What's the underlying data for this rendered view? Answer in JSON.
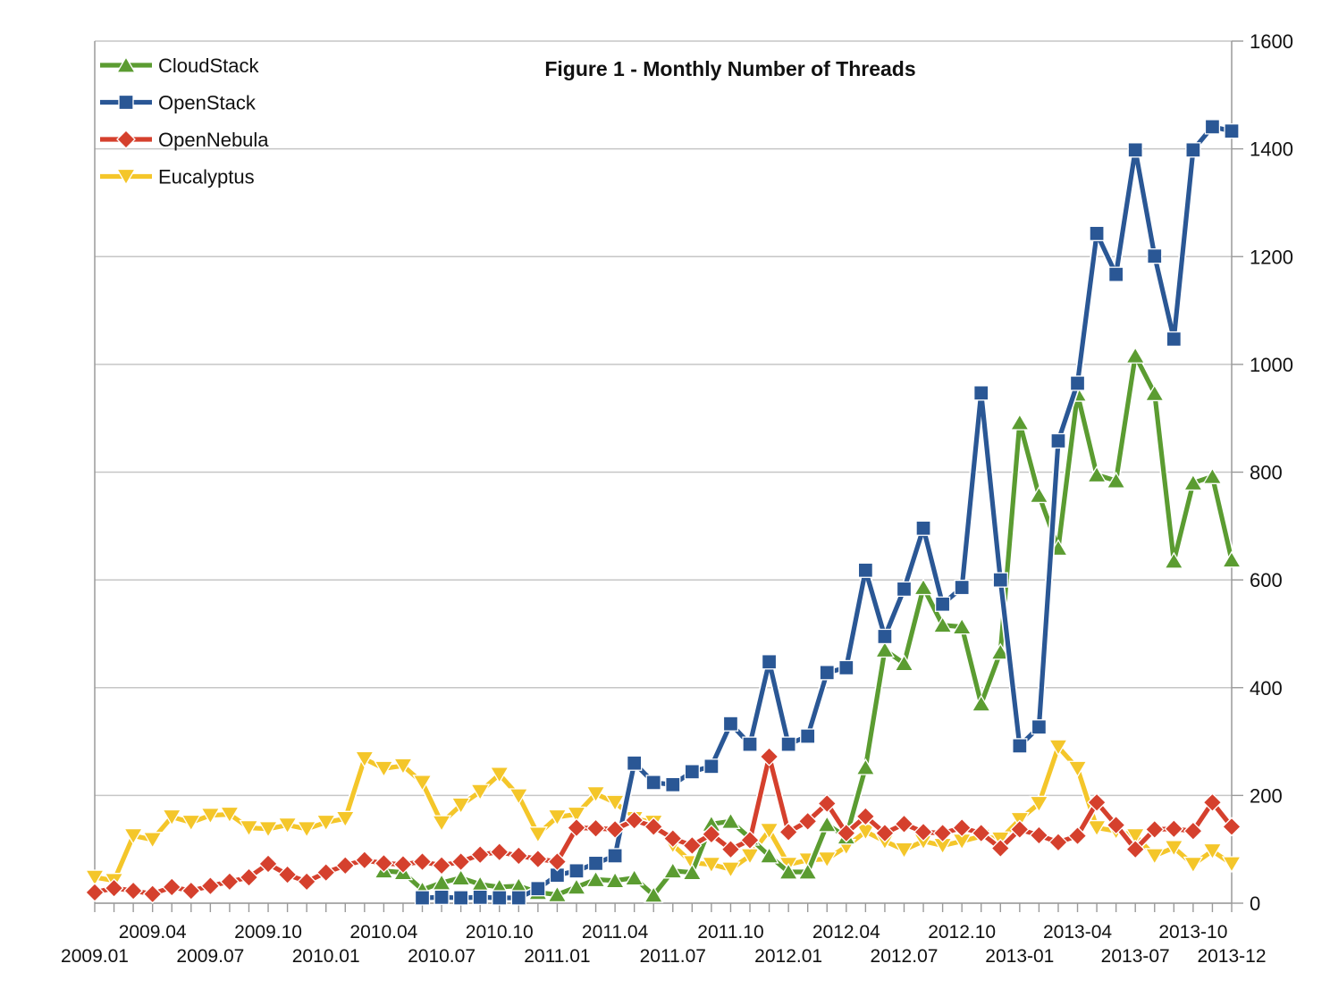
{
  "title": "Figure 1 - Monthly Number of Threads",
  "chart_data": {
    "type": "line",
    "title": "Figure 1 - Monthly Number of Threads",
    "xlabel": "",
    "ylabel": "",
    "ylim": [
      0,
      1600
    ],
    "yticks": [
      0,
      200,
      400,
      600,
      800,
      1000,
      1200,
      1400,
      1600
    ],
    "ytick_side": "right",
    "grid": "horizontal",
    "legend_position": "top-left",
    "x": [
      "2009.01",
      "2009.02",
      "2009.03",
      "2009.04",
      "2009.05",
      "2009.06",
      "2009.07",
      "2009.08",
      "2009.09",
      "2009.10",
      "2009.11",
      "2009.12",
      "2010.01",
      "2010.02",
      "2010.03",
      "2010.04",
      "2010.05",
      "2010.06",
      "2010.07",
      "2010.08",
      "2010.09",
      "2010.10",
      "2010.11",
      "2010.12",
      "2011.01",
      "2011.02",
      "2011.03",
      "2011.04",
      "2011.05",
      "2011.06",
      "2011.07",
      "2011.08",
      "2011.09",
      "2011.10",
      "2011.11",
      "2011.12",
      "2012.01",
      "2012.02",
      "2012.03",
      "2012.04",
      "2012.05",
      "2012.06",
      "2012.07",
      "2012.08",
      "2012.09",
      "2012.10",
      "2012.11",
      "2012.12",
      "2013-01",
      "2013-02",
      "2013-03",
      "2013-04",
      "2013-05",
      "2013-06",
      "2013-07",
      "2013-08",
      "2013-09",
      "2013-10",
      "2013-11",
      "2013-12"
    ],
    "x_ticks": [
      {
        "index": 0,
        "label": "2009.01",
        "row": "lower"
      },
      {
        "index": 3,
        "label": "2009.04",
        "row": "upper"
      },
      {
        "index": 6,
        "label": "2009.07",
        "row": "lower"
      },
      {
        "index": 9,
        "label": "2009.10",
        "row": "upper"
      },
      {
        "index": 12,
        "label": "2010.01",
        "row": "lower"
      },
      {
        "index": 15,
        "label": "2010.04",
        "row": "upper"
      },
      {
        "index": 18,
        "label": "2010.07",
        "row": "lower"
      },
      {
        "index": 21,
        "label": "2010.10",
        "row": "upper"
      },
      {
        "index": 24,
        "label": "2011.01",
        "row": "lower"
      },
      {
        "index": 27,
        "label": "2011.04",
        "row": "upper"
      },
      {
        "index": 30,
        "label": "2011.07",
        "row": "lower"
      },
      {
        "index": 33,
        "label": "2011.10",
        "row": "upper"
      },
      {
        "index": 36,
        "label": "2012.01",
        "row": "lower"
      },
      {
        "index": 39,
        "label": "2012.04",
        "row": "upper"
      },
      {
        "index": 42,
        "label": "2012.07",
        "row": "lower"
      },
      {
        "index": 45,
        "label": "2012.10",
        "row": "upper"
      },
      {
        "index": 48,
        "label": "2013-01",
        "row": "lower"
      },
      {
        "index": 51,
        "label": "2013-04",
        "row": "upper"
      },
      {
        "index": 54,
        "label": "2013-07",
        "row": "lower"
      },
      {
        "index": 57,
        "label": "2013-10",
        "row": "upper"
      },
      {
        "index": 59,
        "label": "2013-12",
        "row": "lower"
      }
    ],
    "series": [
      {
        "name": "CloudStack",
        "color": "#5b9c31",
        "marker": "triangle-up",
        "values": [
          null,
          null,
          null,
          null,
          null,
          null,
          null,
          null,
          null,
          null,
          null,
          null,
          null,
          null,
          null,
          60,
          57,
          25,
          38,
          47,
          35,
          30,
          32,
          20,
          16,
          30,
          44,
          42,
          47,
          15,
          60,
          57,
          147,
          152,
          121,
          88,
          58,
          58,
          146,
          123,
          252,
          470,
          445,
          586,
          516,
          513,
          370,
          466,
          892,
          757,
          659,
          945,
          795,
          784,
          1016,
          946,
          635,
          780,
          792,
          637
        ]
      },
      {
        "name": "OpenStack",
        "color": "#2a5795",
        "marker": "square",
        "values": [
          null,
          null,
          null,
          null,
          null,
          null,
          null,
          null,
          null,
          null,
          null,
          null,
          null,
          null,
          null,
          null,
          null,
          10,
          11,
          10,
          11,
          10,
          10,
          27,
          52,
          60,
          74,
          88,
          260,
          224,
          220,
          244,
          254,
          333,
          295,
          448,
          295,
          310,
          428,
          437,
          618,
          495,
          583,
          696,
          555,
          586,
          947,
          600,
          292,
          327,
          858,
          965,
          1243,
          1167,
          1398,
          1201,
          1047,
          1398,
          1441,
          1433
        ]
      },
      {
        "name": "OpenNebula",
        "color": "#d5402d",
        "marker": "diamond",
        "values": [
          20,
          28,
          23,
          17,
          30,
          23,
          32,
          40,
          48,
          73,
          53,
          40,
          57,
          70,
          80,
          74,
          72,
          77,
          70,
          77,
          90,
          95,
          88,
          82,
          77,
          140,
          139,
          137,
          154,
          142,
          120,
          107,
          128,
          100,
          117,
          272,
          132,
          152,
          185,
          130,
          161,
          130,
          147,
          132,
          130,
          140,
          130,
          102,
          137,
          126,
          113,
          125,
          187,
          145,
          100,
          137,
          138,
          134,
          187,
          142
        ]
      },
      {
        "name": "Eucalyptus",
        "color": "#f4c62a",
        "marker": "triangle-down",
        "values": [
          48,
          42,
          125,
          118,
          160,
          150,
          163,
          165,
          140,
          138,
          145,
          138,
          150,
          157,
          268,
          250,
          255,
          224,
          149,
          182,
          207,
          239,
          199,
          128,
          160,
          165,
          203,
          187,
          157,
          150,
          108,
          75,
          72,
          63,
          88,
          135,
          72,
          80,
          82,
          105,
          133,
          115,
          99,
          115,
          107,
          115,
          124,
          119,
          155,
          185,
          290,
          250,
          140,
          134,
          125,
          88,
          103,
          72,
          97,
          73
        ]
      }
    ],
    "draw_order": [
      "Eucalyptus",
      "CloudStack",
      "OpenStack",
      "OpenNebula"
    ],
    "colors": {
      "grid": "#c6c6c6",
      "axis": "#9a9a9a",
      "background": "#ffffff",
      "text": "#111111"
    }
  }
}
